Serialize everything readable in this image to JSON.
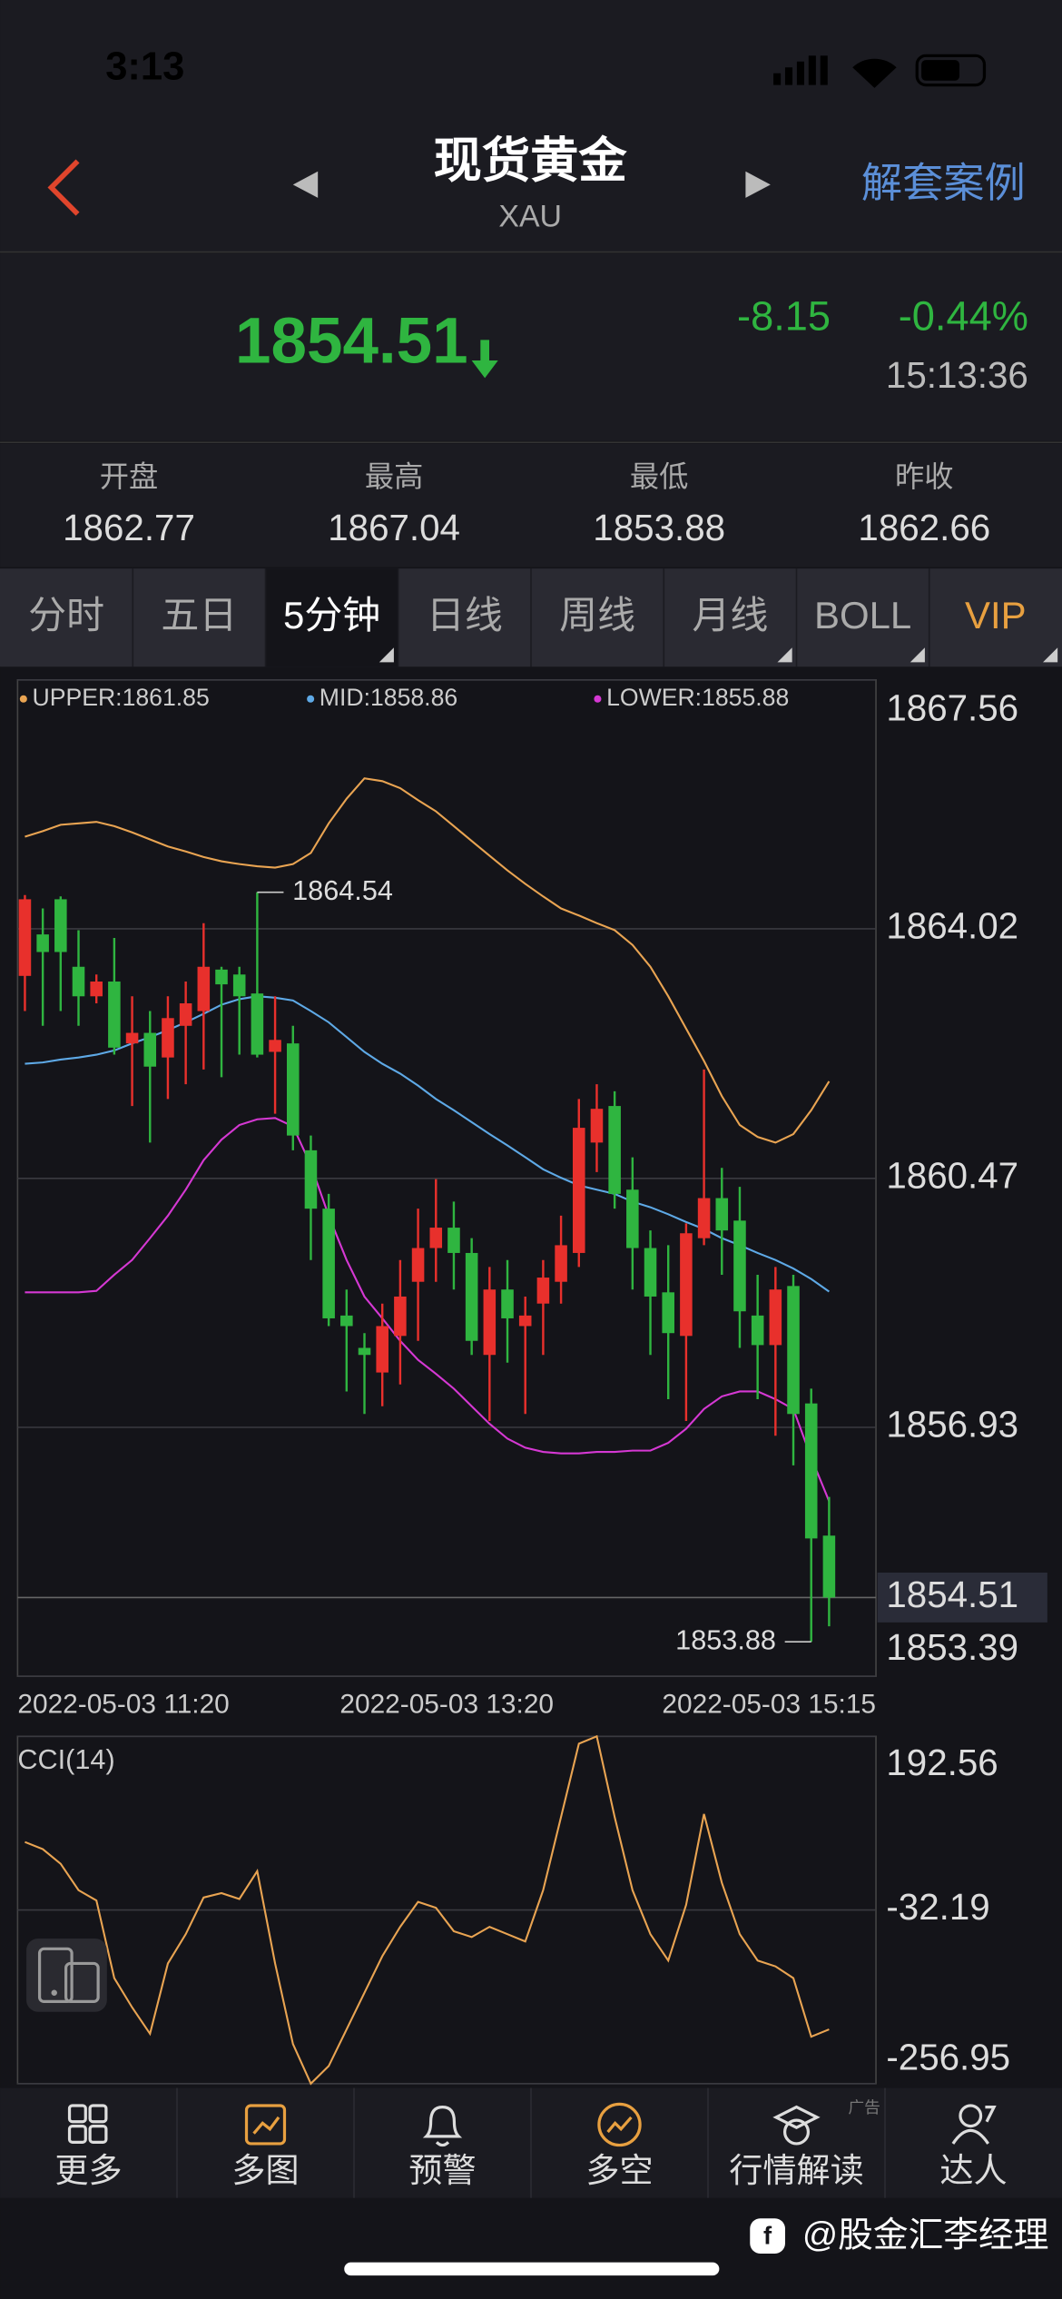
{
  "status_bar": {
    "time": "3:13"
  },
  "header": {
    "title": "现货黄金",
    "subtitle": "XAU",
    "link": "解套案例"
  },
  "quote": {
    "price": "1854.51",
    "change": "-8.15",
    "change_pct": "-0.44%",
    "time": "15:13:36"
  },
  "stats": [
    {
      "label": "开盘",
      "value": "1862.77"
    },
    {
      "label": "最高",
      "value": "1867.04"
    },
    {
      "label": "最低",
      "value": "1853.88"
    },
    {
      "label": "昨收",
      "value": "1862.66"
    }
  ],
  "tabs": {
    "items": [
      "分时",
      "五日",
      "5分钟",
      "日线",
      "周线",
      "月线",
      "BOLL",
      "VIP"
    ],
    "active": 2
  },
  "chart_data": [
    {
      "type": "candlestick",
      "up_color": "#e8302c",
      "down_color": "#2fb540",
      "open": [
        1863.35,
        1863.94,
        1864.44,
        1863.48,
        1863.06,
        1863.27,
        1862.39,
        1862.54,
        1862.19,
        1862.64,
        1862.85,
        1863.44,
        1863.37,
        1863.1,
        1862.27,
        1862.39,
        1860.87,
        1860.04,
        1858.52,
        1858.06,
        1857.71,
        1858.23,
        1859.0,
        1859.48,
        1859.77,
        1859.41,
        1857.96,
        1858.89,
        1858.37,
        1858.69,
        1859.0,
        1859.41,
        1860.98,
        1861.5,
        1860.31,
        1859.48,
        1858.85,
        1858.23,
        1859.62,
        1860.19,
        1859.87,
        1858.52,
        1858.1,
        1858.94,
        1857.27,
        1855.39
      ],
      "high": [
        1864.5,
        1864.31,
        1864.48,
        1864.0,
        1863.37,
        1863.89,
        1863.06,
        1862.85,
        1863.06,
        1863.27,
        1864.1,
        1863.48,
        1863.48,
        1864.54,
        1863.06,
        1862.64,
        1861.08,
        1860.25,
        1858.89,
        1858.27,
        1858.69,
        1859.31,
        1860.04,
        1860.46,
        1860.14,
        1859.62,
        1859.21,
        1859.31,
        1858.79,
        1859.31,
        1859.94,
        1861.6,
        1861.81,
        1861.71,
        1860.77,
        1859.73,
        1859.52,
        1859.83,
        1862.02,
        1860.62,
        1860.35,
        1859.1,
        1859.21,
        1859.1,
        1857.48,
        1855.94
      ],
      "low": [
        1862.85,
        1862.64,
        1862.85,
        1862.64,
        1862.96,
        1862.23,
        1861.5,
        1860.98,
        1861.6,
        1861.81,
        1862.02,
        1861.91,
        1862.23,
        1862.19,
        1861.39,
        1860.87,
        1859.31,
        1858.37,
        1857.44,
        1857.12,
        1857.23,
        1857.54,
        1858.16,
        1859.0,
        1858.89,
        1857.96,
        1857.02,
        1857.85,
        1857.12,
        1857.96,
        1858.69,
        1859.21,
        1860.56,
        1860.04,
        1858.89,
        1857.96,
        1857.33,
        1857.02,
        1859.52,
        1859.1,
        1858.06,
        1857.33,
        1856.81,
        1856.39,
        1853.88,
        1854.1
      ],
      "close": [
        1864.44,
        1863.69,
        1863.69,
        1863.06,
        1863.27,
        1862.33,
        1862.54,
        1862.06,
        1862.75,
        1862.96,
        1863.48,
        1863.23,
        1863.06,
        1862.23,
        1862.44,
        1861.08,
        1860.04,
        1858.48,
        1858.37,
        1857.96,
        1858.37,
        1858.79,
        1859.48,
        1859.77,
        1859.41,
        1858.16,
        1858.89,
        1858.48,
        1858.52,
        1859.06,
        1859.52,
        1861.19,
        1861.46,
        1860.25,
        1859.48,
        1858.79,
        1858.27,
        1859.69,
        1860.19,
        1859.73,
        1858.58,
        1858.1,
        1858.89,
        1857.12,
        1855.35,
        1854.51
      ],
      "series": [
        {
          "name": "UPPER",
          "legend": "UPPER:1861.85",
          "color": "#e9a452",
          "values": [
            1865.33,
            1865.41,
            1865.5,
            1865.52,
            1865.54,
            1865.48,
            1865.39,
            1865.29,
            1865.19,
            1865.12,
            1865.04,
            1864.98,
            1864.94,
            1864.91,
            1864.89,
            1864.94,
            1865.1,
            1865.52,
            1865.87,
            1866.16,
            1866.12,
            1866.02,
            1865.85,
            1865.69,
            1865.48,
            1865.27,
            1865.06,
            1864.85,
            1864.66,
            1864.48,
            1864.31,
            1864.21,
            1864.1,
            1864.0,
            1863.79,
            1863.48,
            1863.06,
            1862.6,
            1862.14,
            1861.64,
            1861.23,
            1861.06,
            1860.98,
            1861.1,
            1861.44,
            1861.85
          ]
        },
        {
          "name": "MID",
          "legend": "MID:1858.86",
          "color": "#5ea9e6",
          "values": [
            1862.1,
            1862.12,
            1862.16,
            1862.19,
            1862.23,
            1862.29,
            1862.39,
            1862.48,
            1862.58,
            1862.69,
            1862.81,
            1862.94,
            1863.02,
            1863.06,
            1863.04,
            1863.0,
            1862.85,
            1862.69,
            1862.48,
            1862.27,
            1862.1,
            1861.96,
            1861.79,
            1861.6,
            1861.44,
            1861.27,
            1861.1,
            1860.94,
            1860.77,
            1860.6,
            1860.48,
            1860.37,
            1860.31,
            1860.25,
            1860.14,
            1860.06,
            1859.96,
            1859.85,
            1859.75,
            1859.62,
            1859.52,
            1859.41,
            1859.31,
            1859.19,
            1859.04,
            1858.86
          ]
        },
        {
          "name": "LOWER",
          "legend": "LOWER:1855.88",
          "color": "#d538d3",
          "values": [
            1858.85,
            1858.85,
            1858.85,
            1858.85,
            1858.87,
            1859.1,
            1859.31,
            1859.62,
            1859.94,
            1860.31,
            1860.73,
            1861.02,
            1861.23,
            1861.31,
            1861.33,
            1861.21,
            1860.66,
            1859.94,
            1859.31,
            1858.79,
            1858.48,
            1858.16,
            1857.89,
            1857.69,
            1857.48,
            1857.23,
            1856.98,
            1856.77,
            1856.64,
            1856.58,
            1856.56,
            1856.56,
            1856.58,
            1856.58,
            1856.6,
            1856.6,
            1856.71,
            1856.91,
            1857.19,
            1857.37,
            1857.44,
            1857.44,
            1857.33,
            1857.19,
            1856.5,
            1855.88
          ]
        }
      ],
      "ylim": [
        1853.39,
        1867.56
      ],
      "yticks": [
        1853.39,
        1856.93,
        1860.47,
        1864.02,
        1867.56
      ],
      "grid": true,
      "current_price": 1854.51,
      "high_label": 1864.54,
      "low_label": 1853.88,
      "x_labels": [
        "2022-05-03 11:20",
        "2022-05-03 13:20",
        "2022-05-03 15:15"
      ]
    },
    {
      "type": "line",
      "title": "CCI(14)",
      "color": "#e9a452",
      "values": [
        55.9,
        46.5,
        27.6,
        -6.6,
        -19.9,
        -120.4,
        -158.3,
        -192.5,
        -101.4,
        -63.5,
        -16.1,
        -10.4,
        -18.0,
        18.1,
        -101.4,
        -205.7,
        -256.9,
        -234.2,
        -186.8,
        -139.3,
        -91.9,
        -54.0,
        -21.8,
        -29.4,
        -59.7,
        -67.3,
        -54.0,
        -63.5,
        -73.0,
        -6.6,
        88.2,
        183.1,
        192.5,
        88.2,
        -6.6,
        -63.5,
        -97.6,
        -25.6,
        92.0,
        2.9,
        -63.5,
        -97.6,
        -105.2,
        -120.4,
        -196.3,
        -186.8
      ],
      "ylim": [
        -256.95,
        192.56
      ],
      "yticks": [
        192.56,
        -32.19,
        -256.95
      ],
      "grid": true
    }
  ],
  "bottom_nav": {
    "items": [
      "更多",
      "多图",
      "预警",
      "多空",
      "行情解读",
      "达人"
    ],
    "ad": "广告"
  },
  "watermark": "@股金汇李经理"
}
